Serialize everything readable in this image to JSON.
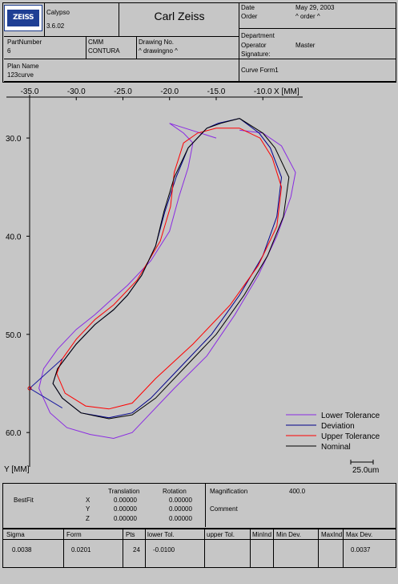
{
  "header": {
    "software": "Calypso",
    "version": "3.6.02",
    "title": "Carl Zeiss",
    "logo_text": "ZEISS",
    "date_label": "Date",
    "date_value": "May 29, 2003",
    "order_label": "Order",
    "order_value": "^ order ^",
    "part_number_label": "PartNumber",
    "part_number_value": "6",
    "cmm_label": "CMM",
    "cmm_value": "CONTURA",
    "drawing_label": "Drawing No.",
    "drawing_value": "^ drawingno ^",
    "department_label": "Department",
    "operator_label": "Operator",
    "operator_value": "Master",
    "signature_label": "Signature:",
    "plan_label": "Plan Name",
    "plan_value": "123curve",
    "feature_name": "Curve Form1"
  },
  "chart_data": {
    "type": "line",
    "xlabel": "X [MM]",
    "ylabel": "Y [MM]",
    "x_ticks": [
      "-35.0",
      "-30.0",
      "-25.0",
      "-20.0",
      "-15.0",
      "-10.0"
    ],
    "y_ticks": [
      "30.0",
      "40.0",
      "50.0",
      "60.0"
    ],
    "xlim": [
      -35.0,
      -6.5
    ],
    "ylim": [
      25.5,
      63.5
    ],
    "legend_position": "bottom-right",
    "scale_bar_label": "25.0um",
    "series": [
      {
        "name": "Lower Tolerance",
        "color": "#8a2be2",
        "x": [
          -12.5,
          -10,
          -8,
          -6.5,
          -7,
          -8.5,
          -10.5,
          -13,
          -16,
          -19.5,
          -22.5,
          -24,
          -26,
          -28.5,
          -31,
          -32.8,
          -34,
          -33.5,
          -32,
          -30,
          -28,
          -26.5,
          -24.5,
          -22,
          -20,
          -19,
          -18,
          -17.5,
          -18.5,
          -20,
          -15
        ],
        "y": [
          29.2,
          29.5,
          30.8,
          33.5,
          36,
          40,
          44,
          48,
          52.2,
          55.5,
          58.5,
          60,
          60.6,
          60.2,
          59.5,
          58,
          55.5,
          53.5,
          51.5,
          49.5,
          48,
          46.7,
          45,
          42.5,
          39.5,
          36,
          33,
          30.5,
          29.5,
          28.5,
          30
        ]
      },
      {
        "name": "Deviation",
        "color": "#00008b",
        "x": [
          -12.5,
          -10.4,
          -9.2,
          -8,
          -8.5,
          -10,
          -12.5,
          -15.5,
          -19,
          -22,
          -24,
          -26.5,
          -29.5,
          -31.5,
          -32.5,
          -32,
          -30,
          -28,
          -26,
          -24.5,
          -23,
          -21.5,
          -20.5,
          -19.3,
          -18,
          -16,
          -14.8,
          -12.5
        ],
        "y": [
          28,
          29.5,
          31,
          34,
          38,
          42,
          46,
          50,
          53.5,
          56.5,
          58,
          58.5,
          58,
          56.5,
          55,
          53.5,
          51,
          49,
          47.5,
          46,
          44,
          41,
          37.5,
          34,
          31,
          29,
          28.5,
          28
        ]
      },
      {
        "name": "Upper Tolerance",
        "color": "#ff0000",
        "x": [
          -12.5,
          -10.3,
          -9,
          -8,
          -8.5,
          -10.5,
          -13.5,
          -17.5,
          -21.5,
          -24,
          -26.5,
          -29,
          -31.2,
          -32.1,
          -31.5,
          -30,
          -28,
          -26,
          -23.5,
          -21,
          -19.9,
          -19.5,
          -18.5,
          -17,
          -15,
          -12.5
        ],
        "y": [
          29,
          30,
          32,
          35,
          39,
          43,
          47,
          51,
          54.5,
          57,
          57.6,
          57.3,
          56,
          54,
          52.5,
          50.5,
          48.5,
          47,
          44.5,
          40.5,
          37,
          33.5,
          30.5,
          29.5,
          29,
          29
        ]
      },
      {
        "name": "Nominal",
        "color": "#000000",
        "x": [
          -12.5,
          -10,
          -8.7,
          -7.2,
          -7.8,
          -9.5,
          -12,
          -15,
          -18.5,
          -21.5,
          -24,
          -26.5,
          -29.5,
          -31.5,
          -32.5,
          -32,
          -30,
          -28,
          -26,
          -24.5,
          -23,
          -21.5,
          -20.6,
          -19.5,
          -18,
          -16,
          -14.5,
          -12.5
        ],
        "y": [
          28,
          29.5,
          31,
          34,
          38,
          42,
          46,
          50,
          53.5,
          56.5,
          58.2,
          58.6,
          58,
          56.5,
          55,
          53.5,
          51,
          49,
          47.5,
          46,
          44,
          41,
          37.5,
          34,
          31,
          29,
          28.5,
          28
        ]
      }
    ]
  },
  "results": {
    "bestfit_label": "BestFit",
    "translation_label": "Translation",
    "rotation_label": "Rotation",
    "axes": [
      {
        "axis": "X",
        "translation": "0.00000",
        "rotation": "0.00000"
      },
      {
        "axis": "Y",
        "translation": "0.00000",
        "rotation": "0.00000"
      },
      {
        "axis": "Z",
        "translation": "0.00000",
        "rotation": "0.00000"
      }
    ],
    "magnification_label": "Magnification",
    "magnification_value": "400.0",
    "comment_label": "Comment"
  },
  "stats_table": {
    "headers": [
      "Sigma",
      "Form",
      "Pts",
      "lower Tol.",
      "upper Tol.",
      "MinInd",
      "Min Dev.",
      "MaxInd",
      "Max Dev."
    ],
    "values": [
      "0.0038",
      "0.0201",
      "24",
      "-0.0100",
      "",
      "",
      "",
      "",
      "0.0037"
    ]
  }
}
